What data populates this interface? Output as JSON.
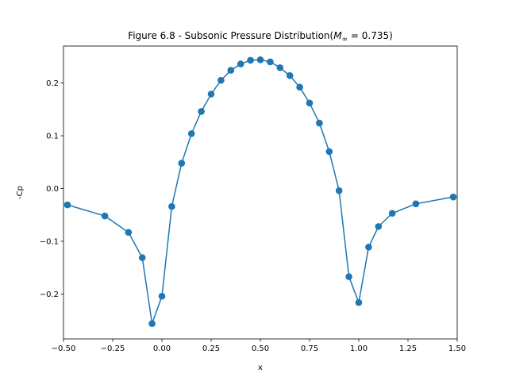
{
  "chart_data": {
    "type": "line",
    "title": "Figure 6.8 - Subsonic Pressure Distribution(M∞ = 0.735)",
    "title_parts": {
      "prefix": "Figure 6.8 - Subsonic Pressure Distribution(",
      "math_var": "M",
      "math_sub": "∞",
      "math_rest": " = 0.735)"
    },
    "xlabel": "x",
    "ylabel": "-Cp",
    "xlim": [
      -0.5,
      1.5
    ],
    "ylim": [
      -0.285,
      0.27
    ],
    "xticks": [
      -0.5,
      -0.25,
      0.0,
      0.25,
      0.5,
      0.75,
      1.0,
      1.25,
      1.5
    ],
    "xtick_labels": [
      "−0.50",
      "−0.25",
      "0.00",
      "0.25",
      "0.50",
      "0.75",
      "1.00",
      "1.25",
      "1.50"
    ],
    "yticks": [
      -0.2,
      -0.1,
      0.0,
      0.1,
      0.2
    ],
    "ytick_labels": [
      "−0.2",
      "−0.1",
      "0.0",
      "0.1",
      "0.2"
    ],
    "grid": false,
    "color": "#1f77b4",
    "marker": "circle",
    "series": [
      {
        "x": [
          -0.48,
          -0.29,
          -0.17,
          -0.1,
          -0.05,
          0.0,
          0.05,
          0.1,
          0.15,
          0.2,
          0.25,
          0.3,
          0.35,
          0.4,
          0.45,
          0.5,
          0.55,
          0.6,
          0.65,
          0.7,
          0.75,
          0.8,
          0.85,
          0.9,
          0.95,
          1.0,
          1.05,
          1.1,
          1.17,
          1.29,
          1.48
        ],
        "y": [
          -0.031,
          -0.052,
          -0.083,
          -0.131,
          -0.256,
          -0.204,
          -0.034,
          0.048,
          0.104,
          0.146,
          0.179,
          0.205,
          0.224,
          0.236,
          0.243,
          0.244,
          0.24,
          0.229,
          0.214,
          0.192,
          0.162,
          0.124,
          0.07,
          -0.004,
          -0.167,
          -0.216,
          -0.111,
          -0.072,
          -0.047,
          -0.029,
          -0.016
        ]
      }
    ]
  }
}
